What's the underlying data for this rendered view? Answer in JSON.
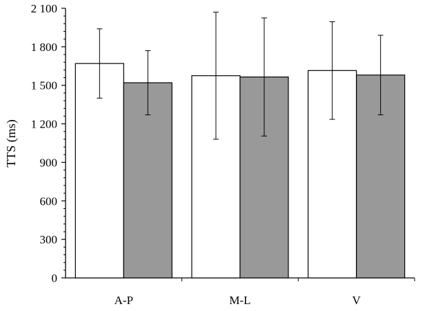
{
  "chart_data": {
    "type": "bar",
    "categories": [
      "A-P",
      "M-L",
      "V"
    ],
    "ylabel": "TTS (ms)",
    "xlabel": "",
    "ylim": [
      0,
      2100
    ],
    "yticks": [
      {
        "value": 0,
        "label": "0"
      },
      {
        "value": 300,
        "label": "300"
      },
      {
        "value": 600,
        "label": "600"
      },
      {
        "value": 900,
        "label": "900"
      },
      {
        "value": 1200,
        "label": "1 200"
      },
      {
        "value": 1500,
        "label": "1 500"
      },
      {
        "value": 1800,
        "label": "1 800"
      },
      {
        "value": 2100,
        "label": "2 100"
      }
    ],
    "series": [
      {
        "fill": "#ffffff",
        "values": [
          1670,
          1575,
          1615
        ],
        "error": [
          270,
          495,
          380
        ]
      },
      {
        "fill": "#999999",
        "values": [
          1520,
          1565,
          1580
        ],
        "error": [
          250,
          460,
          310
        ]
      }
    ],
    "grid": false,
    "legend": "none"
  }
}
